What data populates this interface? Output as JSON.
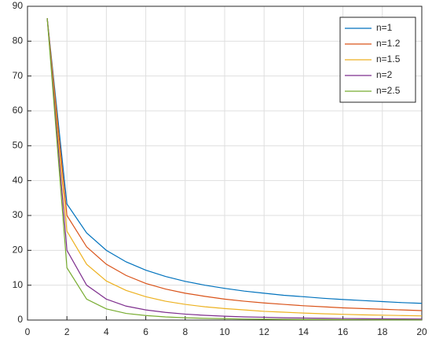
{
  "chart_data": {
    "type": "line",
    "x": [
      1,
      2,
      3,
      4,
      5,
      6,
      7,
      8,
      9,
      10,
      11,
      12,
      13,
      14,
      15,
      16,
      17,
      18,
      19,
      20
    ],
    "series": [
      {
        "name": "n=1",
        "color": "#0072bd",
        "values": [
          86.6,
          33.3,
          25,
          20,
          16.7,
          14.3,
          12.5,
          11.1,
          10,
          9.1,
          8.3,
          7.7,
          7.1,
          6.7,
          6.25,
          5.9,
          5.6,
          5.3,
          5,
          4.8
        ]
      },
      {
        "name": "n=1.2",
        "color": "#d95319",
        "values": [
          86.6,
          30,
          21,
          16,
          12.8,
          10.5,
          8.9,
          7.7,
          6.8,
          6,
          5.4,
          4.9,
          4.5,
          4.1,
          3.8,
          3.5,
          3.3,
          3.1,
          2.9,
          2.7
        ]
      },
      {
        "name": "n=1.5",
        "color": "#edb120",
        "values": [
          86.6,
          25.5,
          16,
          11.2,
          8.5,
          6.7,
          5.4,
          4.5,
          3.8,
          3.3,
          2.9,
          2.5,
          2.25,
          2,
          1.8,
          1.65,
          1.5,
          1.4,
          1.3,
          1.2
        ]
      },
      {
        "name": "n=2",
        "color": "#7e2f8e",
        "values": [
          86.6,
          20,
          10,
          6,
          4,
          2.9,
          2.2,
          1.7,
          1.35,
          1.1,
          0.9,
          0.8,
          0.65,
          0.58,
          0.5,
          0.44,
          0.39,
          0.35,
          0.31,
          0.28
        ]
      },
      {
        "name": "n=2.5",
        "color": "#77ac30",
        "values": [
          86.6,
          15,
          6,
          3.2,
          1.9,
          1.3,
          0.9,
          0.65,
          0.5,
          0.39,
          0.3,
          0.25,
          0.2,
          0.17,
          0.14,
          0.12,
          0.1,
          0.09,
          0.08,
          0.07
        ]
      }
    ],
    "xlim": [
      0,
      20
    ],
    "xticks": [
      0,
      2,
      4,
      6,
      8,
      10,
      12,
      14,
      16,
      18,
      20
    ],
    "ylim": [
      0,
      90
    ],
    "yticks": [
      0,
      10,
      20,
      30,
      40,
      50,
      60,
      70,
      80,
      90
    ],
    "grid": true,
    "legend": "upper right"
  }
}
